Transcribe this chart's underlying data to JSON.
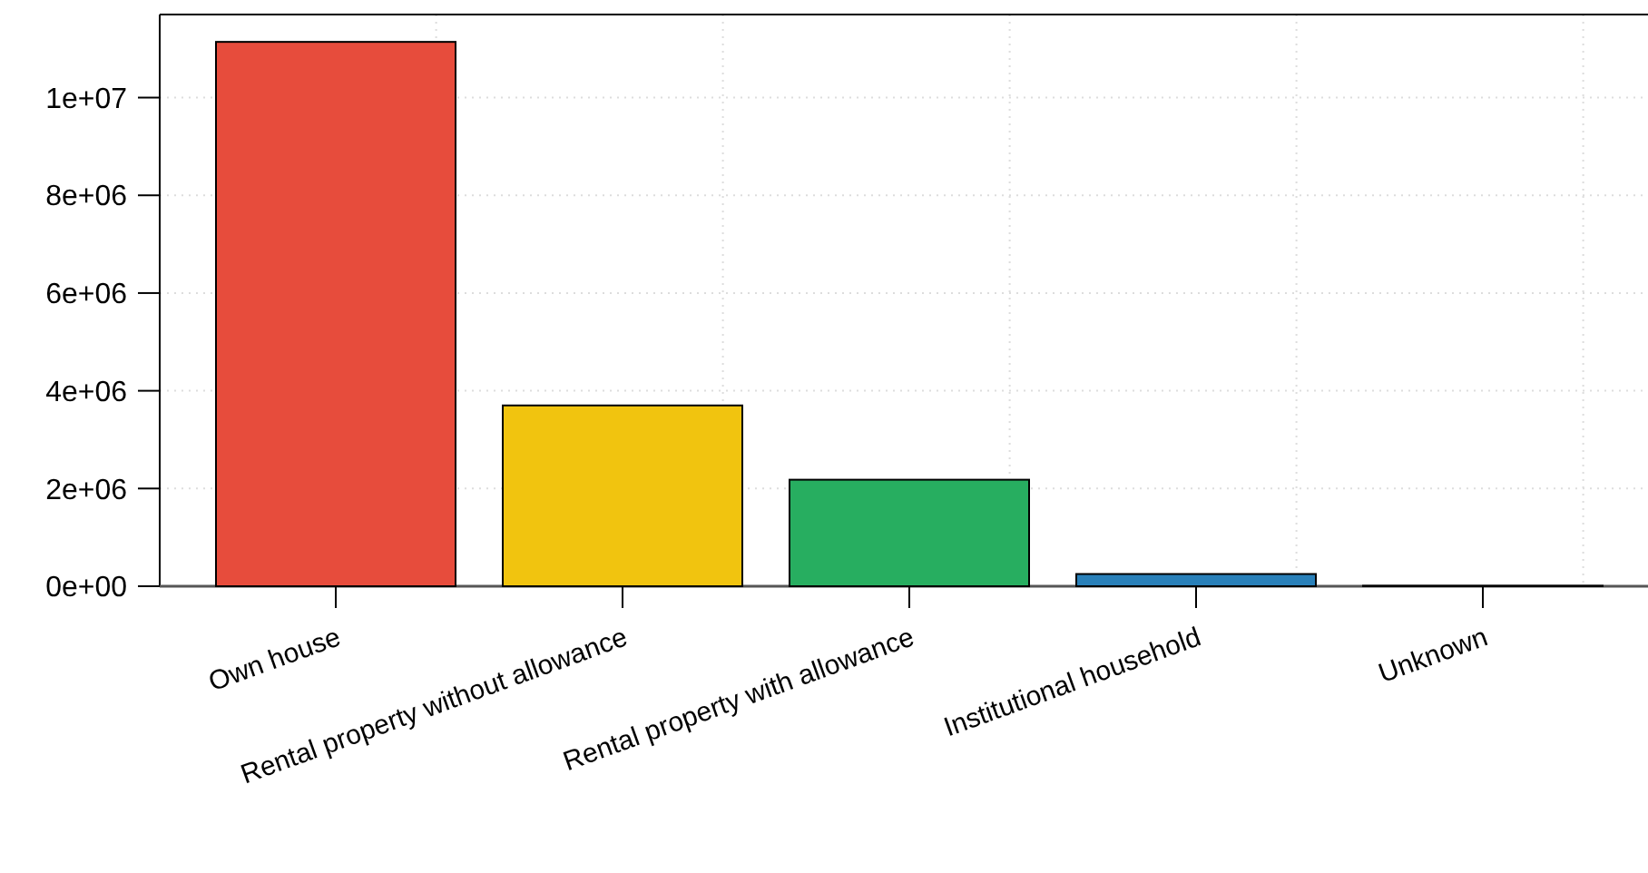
{
  "chart_data": {
    "type": "bar",
    "categories": [
      "Own house",
      "Rental property without allowance",
      "Rental property with allowance",
      "Institutional household",
      "Unknown"
    ],
    "values": [
      11140000,
      3700000,
      2180000,
      250000,
      10000
    ],
    "colors": [
      "#e74c3c",
      "#f1c40f",
      "#27ae60",
      "#2980b9",
      "#8e44ad"
    ],
    "ylim": [
      0,
      11700000
    ],
    "yticks": [
      {
        "value": 0,
        "label": "0e+00"
      },
      {
        "value": 2000000,
        "label": "2e+06"
      },
      {
        "value": 4000000,
        "label": "4e+06"
      },
      {
        "value": 6000000,
        "label": "6e+06"
      },
      {
        "value": 8000000,
        "label": "8e+06"
      },
      {
        "value": 10000000,
        "label": "1e+07"
      }
    ],
    "grid": true
  }
}
